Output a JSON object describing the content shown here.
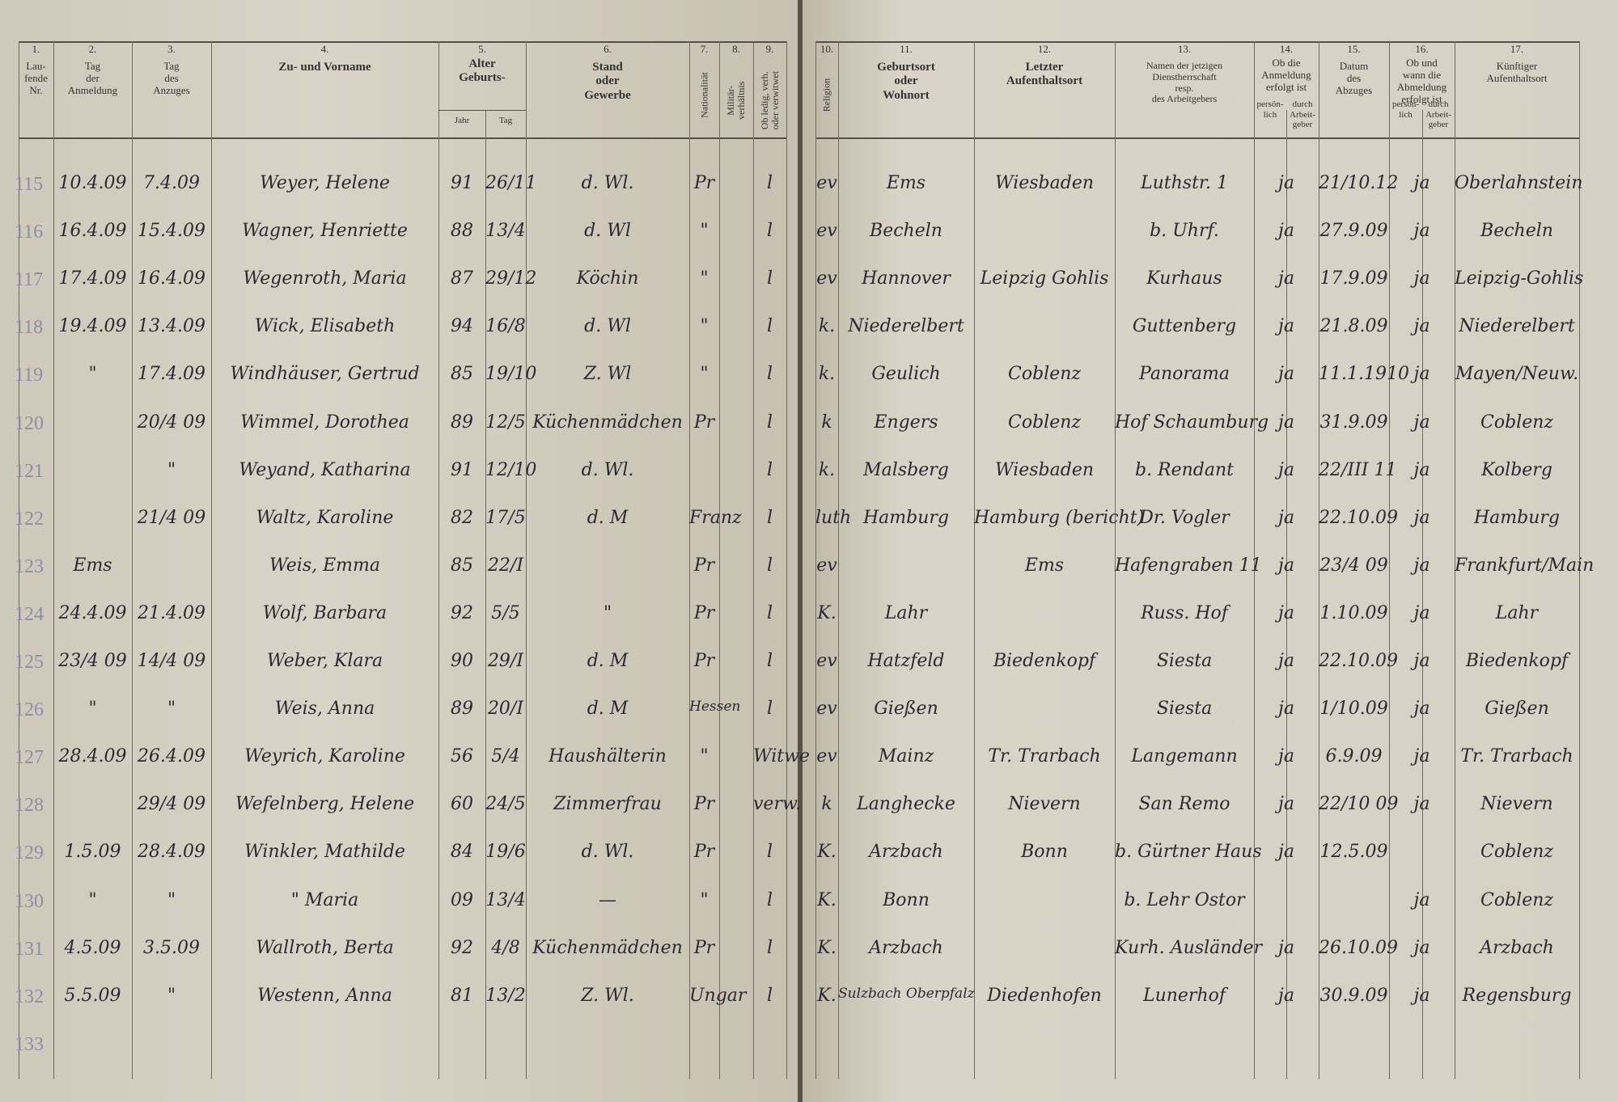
{
  "header": {
    "columns": [
      {
        "number": "1.",
        "label": "Lau-\nfende\nNr."
      },
      {
        "number": "2.",
        "label": "Tag\nder\nAnmeldung"
      },
      {
        "number": "3.",
        "label": "Tag\ndes\nAnzuges"
      },
      {
        "number": "4.",
        "label": "Zu- und Vorname"
      },
      {
        "number": "5.",
        "label": "Alter\nGeburts-",
        "sub": [
          "Jahr",
          "Tag"
        ]
      },
      {
        "number": "6.",
        "label": "Stand\noder\nGewerbe"
      },
      {
        "number": "7.",
        "label": "Nationalität"
      },
      {
        "number": "8.",
        "label": "Militär-\nverhältnis"
      },
      {
        "number": "9.",
        "label": "Ob ledig, verh.\noder verwitwet"
      },
      {
        "number": "10.",
        "label": "Religion"
      },
      {
        "number": "11.",
        "label": "Geburtsort\noder\nWohnort"
      },
      {
        "number": "12.",
        "label": "Letzter\nAufenthaltsort"
      },
      {
        "number": "13.",
        "label": "Namen der jetzigen\nDienstherrschaft\nresp.\ndes Arbeitgebers"
      },
      {
        "number": "14.",
        "label": "Ob die\nAnmeldung\nerfolgt ist",
        "sub": [
          "persön-\nlich",
          "durch\nArbeit-\ngeber"
        ]
      },
      {
        "number": "15.",
        "label": "Datum\ndes\nAbzuges"
      },
      {
        "number": "16.",
        "label": "Ob und\nwann die\nAbmeldung\nerfolgt ist",
        "sub": [
          "persön-\nlich",
          "durch\nArbeit-\ngeber"
        ]
      },
      {
        "number": "17.",
        "label": "Künftiger\nAufenthaltsort"
      }
    ]
  },
  "table": {
    "rows": [
      [
        "115",
        "10.4.09",
        "7.4.09",
        "Weyer, Helene",
        "91",
        "26/11",
        "d. Wl.",
        "Pr",
        null,
        "l",
        "ev",
        "Ems",
        "Wiesbaden",
        "Luthstr. 1",
        "ja",
        "21/10.12",
        "ja",
        "Oberlahnstein"
      ],
      [
        "116",
        "16.4.09",
        "15.4.09",
        "Wagner, Henriette",
        "88",
        "13/4",
        "d. Wl",
        "\"",
        null,
        "l",
        "ev",
        "Becheln",
        null,
        "b. Uhrf.",
        "ja",
        "27.9.09",
        "ja",
        "Becheln"
      ],
      [
        "117",
        "17.4.09",
        "16.4.09",
        "Wegenroth, Maria",
        "87",
        "29/12",
        "Köchin",
        "\"",
        null,
        "l",
        "ev",
        "Hannover",
        "Leipzig Gohlis",
        "Kurhaus",
        "ja",
        "17.9.09",
        "ja",
        "Leipzig-Gohlis"
      ],
      [
        "118",
        "19.4.09",
        "13.4.09",
        "Wick, Elisabeth",
        "94",
        "16/8",
        "d. Wl",
        "\"",
        null,
        "l",
        "k.",
        "Niederelbert",
        null,
        "Guttenberg",
        "ja",
        "21.8.09",
        "ja",
        "Niederelbert"
      ],
      [
        "119",
        "\"",
        "17.4.09",
        "Windhäuser, Gertrud",
        "85",
        "19/10",
        "Z. Wl",
        "\"",
        null,
        "l",
        "k.",
        "Geulich",
        "Coblenz",
        "Panorama",
        "ja",
        "11.1.1910",
        "ja",
        "Mayen/Neuw."
      ],
      [
        "120",
        null,
        "20/4 09",
        "Wimmel, Dorothea",
        "89",
        "12/5",
        "Küchenmädchen",
        "Pr",
        null,
        "l",
        "k",
        "Engers",
        "Coblenz",
        "Hof Schaumburg",
        "ja",
        "31.9.09",
        "ja",
        "Coblenz"
      ],
      [
        "121",
        null,
        "\"",
        "Weyand, Katharina",
        "91",
        "12/10",
        "d. Wl.",
        null,
        null,
        "l",
        "k.",
        "Malsberg",
        "Wiesbaden",
        "b. Rendant",
        "ja",
        "22/III 11",
        "ja",
        "Kolberg"
      ],
      [
        "122",
        null,
        "21/4 09",
        "Waltz, Karoline",
        "82",
        "17/5",
        "d. M",
        "Franz",
        null,
        "l",
        "luth",
        "Hamburg",
        "Hamburg (bericht)",
        "Dr. Vogler",
        "ja",
        "22.10.09",
        "ja",
        "Hamburg"
      ],
      [
        "123",
        "Ems",
        null,
        "Weis, Emma",
        "85",
        "22/I",
        null,
        "Pr",
        null,
        "l",
        "ev",
        null,
        "Ems",
        "Hafengraben 11",
        "ja",
        "23/4 09",
        "ja",
        "Frankfurt/Main"
      ],
      [
        "124",
        "24.4.09",
        "21.4.09",
        "Wolf, Barbara",
        "92",
        "5/5",
        "\"",
        "Pr",
        null,
        "l",
        "K.",
        "Lahr",
        null,
        "Russ. Hof",
        "ja",
        "1.10.09",
        "ja",
        "Lahr"
      ],
      [
        "125",
        "23/4 09",
        "14/4 09",
        "Weber, Klara",
        "90",
        "29/I",
        "d. M",
        "Pr",
        null,
        "l",
        "ev",
        "Hatzfeld",
        "Biedenkopf",
        "Siesta",
        "ja",
        "22.10.09",
        "ja",
        "Biedenkopf"
      ],
      [
        "126",
        "\"",
        "\"",
        "Weis, Anna",
        "89",
        "20/I",
        "d. M",
        "Hessen",
        null,
        "l",
        "ev",
        "Gießen",
        null,
        "Siesta",
        "ja",
        "1/10.09",
        "ja",
        "Gießen"
      ],
      [
        "127",
        "28.4.09",
        "26.4.09",
        "Weyrich, Karoline",
        "56",
        "5/4",
        "Haushälterin",
        "\"",
        null,
        "Witwe",
        "ev",
        "Mainz",
        "Tr. Trarbach",
        "Langemann",
        "ja",
        "6.9.09",
        "ja",
        "Tr. Trarbach"
      ],
      [
        "128",
        null,
        "29/4 09",
        "Wefelnberg, Helene",
        "60",
        "24/5",
        "Zimmerfrau",
        "Pr",
        null,
        "verw.",
        "k",
        "Langhecke",
        "Nievern",
        "San Remo",
        "ja",
        "22/10 09",
        "ja",
        "Nievern"
      ],
      [
        "129",
        "1.5.09",
        "28.4.09",
        "Winkler, Mathilde",
        "84",
        "19/6",
        "d. Wl.",
        "Pr",
        null,
        "l",
        "K.",
        "Arzbach",
        "Bonn",
        "b. Gürtner Haus",
        "ja",
        "12.5.09",
        null,
        "Coblenz"
      ],
      [
        "130",
        "\"",
        "\"",
        "\" Maria",
        "09",
        "13/4",
        "—",
        "\"",
        null,
        "l",
        "K.",
        "Bonn",
        null,
        "b. Lehr Ostor",
        null,
        null,
        "ja",
        "Coblenz"
      ],
      [
        "131",
        "4.5.09",
        "3.5.09",
        "Wallroth, Berta",
        "92",
        "4/8",
        "Küchenmädchen",
        "Pr",
        null,
        "l",
        "K.",
        "Arzbach",
        null,
        "Kurh. Ausländer",
        "ja",
        "26.10.09",
        "ja",
        "Arzbach"
      ],
      [
        "132",
        "5.5.09",
        "\"",
        "Westenn, Anna",
        "81",
        "13/2",
        "Z. Wl.",
        "Ungar",
        null,
        "l",
        "K.",
        "Sulzbach Oberpfalz",
        "Diedenhofen",
        "Lunerhof",
        "ja",
        "30.9.09",
        "ja",
        "Regensburg"
      ],
      [
        "133",
        null,
        null,
        null,
        null,
        null,
        null,
        null,
        null,
        null,
        null,
        null,
        null,
        null,
        null,
        null,
        null,
        null
      ]
    ]
  }
}
